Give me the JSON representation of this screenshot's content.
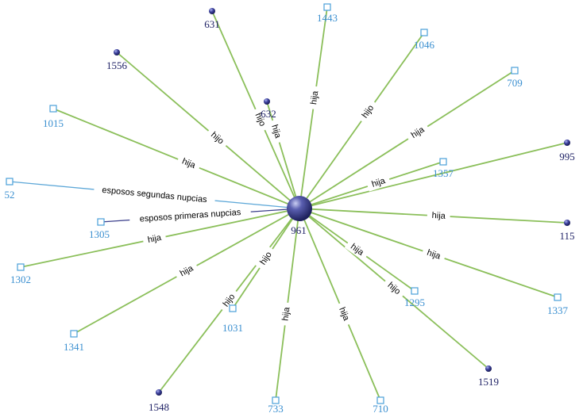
{
  "colors": {
    "edge": "#8bbf5a",
    "spouse_edge_second": "#5ea8d8",
    "spouse_edge_first": "#3b3f8c",
    "male_node": "#2b2f7a",
    "female_node": "#4a9fd9",
    "center_node": "#2b2f7a",
    "label_male": "#1f2266",
    "label_female": "#3a8fd0"
  },
  "center": {
    "id": "961",
    "label": "961"
  },
  "nodes": [
    {
      "id": "631",
      "label": "631",
      "kind": "male",
      "relation": "hijo"
    },
    {
      "id": "1443",
      "label": "1443",
      "kind": "female",
      "relation": "hija"
    },
    {
      "id": "1046",
      "label": "1046",
      "kind": "female",
      "relation": "hijo"
    },
    {
      "id": "1556",
      "label": "1556",
      "kind": "male",
      "relation": "hijo"
    },
    {
      "id": "632",
      "label": "632",
      "kind": "male",
      "relation": "hija"
    },
    {
      "id": "709",
      "label": "709",
      "kind": "female",
      "relation": "hija"
    },
    {
      "id": "1015",
      "label": "1015",
      "kind": "female",
      "relation": "hija"
    },
    {
      "id": "995",
      "label": "995",
      "kind": "male",
      "relation": ""
    },
    {
      "id": "1357",
      "label": "1357",
      "kind": "female",
      "relation": "hija"
    },
    {
      "id": "52",
      "label": "52",
      "kind": "female",
      "relation": "esposos segundas nupcias"
    },
    {
      "id": "1305",
      "label": "1305",
      "kind": "female",
      "relation": "esposos primeras nupcias"
    },
    {
      "id": "115",
      "label": "115",
      "kind": "male",
      "relation": "hija"
    },
    {
      "id": "1302",
      "label": "1302",
      "kind": "female",
      "relation": "hija"
    },
    {
      "id": "1337",
      "label": "1337",
      "kind": "female",
      "relation": "hija"
    },
    {
      "id": "1295",
      "label": "1295",
      "kind": "female",
      "relation": "hija"
    },
    {
      "id": "1341",
      "label": "1341",
      "kind": "female",
      "relation": "hija"
    },
    {
      "id": "1031",
      "label": "1031",
      "kind": "female",
      "relation": "hijo"
    },
    {
      "id": "1519",
      "label": "1519",
      "kind": "male",
      "relation": "hijo"
    },
    {
      "id": "1548",
      "label": "1548",
      "kind": "male",
      "relation": "hijo"
    },
    {
      "id": "733",
      "label": "733",
      "kind": "female",
      "relation": "hija"
    },
    {
      "id": "710",
      "label": "710",
      "kind": "female",
      "relation": "hija"
    }
  ]
}
